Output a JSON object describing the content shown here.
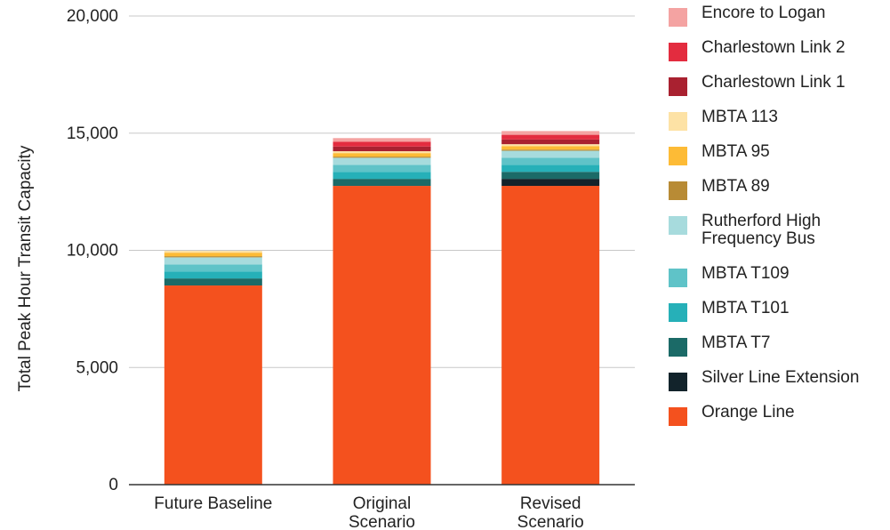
{
  "chart_data": {
    "type": "bar",
    "stacked": true,
    "title": "",
    "xlabel": "",
    "ylabel": "Total Peak Hour Transit Capacity",
    "ylim": [
      0,
      20000
    ],
    "yticks": [
      {
        "value": 0,
        "label": "0"
      },
      {
        "value": 5000,
        "label": "5,000"
      },
      {
        "value": 10000,
        "label": "10,000"
      },
      {
        "value": 15000,
        "label": "15,000"
      },
      {
        "value": 20000,
        "label": "20,000"
      }
    ],
    "grid": true,
    "legend_position": "right",
    "categories": [
      {
        "line1": "Future Baseline",
        "line2": ""
      },
      {
        "line1": "Original",
        "line2": "Scenario"
      },
      {
        "line1": "Revised",
        "line2": "Scenario"
      }
    ],
    "series": [
      {
        "name": "Orange Line",
        "color": "#f4511e",
        "values": [
          8500,
          12750,
          12750
        ]
      },
      {
        "name": "Silver Line Extension",
        "color": "#12232b",
        "values": [
          0,
          0,
          300
        ]
      },
      {
        "name": "MBTA T7",
        "color": "#1b6a67",
        "values": [
          300,
          300,
          300
        ]
      },
      {
        "name": "MBTA T101",
        "color": "#26b0b8",
        "values": [
          300,
          300,
          300
        ]
      },
      {
        "name": "MBTA T109",
        "color": "#5fc3c8",
        "values": [
          300,
          300,
          300
        ]
      },
      {
        "name": "Rutherford High Frequency Bus",
        "color": "#a7dbdd",
        "values": [
          300,
          300,
          300
        ]
      },
      {
        "name": "MBTA 89",
        "color": "#b88b35",
        "values": [
          50,
          50,
          50
        ]
      },
      {
        "name": "MBTA 95",
        "color": "#fdbb36",
        "values": [
          150,
          150,
          150
        ]
      },
      {
        "name": "MBTA 113",
        "color": "#fde2a5",
        "values": [
          80,
          80,
          80
        ]
      },
      {
        "name": "Charlestown Link 1",
        "color": "#a92130",
        "values": [
          0,
          200,
          200
        ]
      },
      {
        "name": "Charlestown Link 2",
        "color": "#e32c3f",
        "values": [
          0,
          200,
          200
        ]
      },
      {
        "name": "Encore to Logan",
        "color": "#f4a3a2",
        "values": [
          0,
          160,
          160
        ]
      }
    ],
    "legend_order": [
      "Encore to Logan",
      "Charlestown Link 2",
      "Charlestown Link 1",
      "MBTA 113",
      "MBTA 95",
      "MBTA 89",
      "Rutherford High Frequency Bus",
      "MBTA T109",
      "MBTA T101",
      "MBTA T7",
      "Silver Line Extension",
      "Orange Line"
    ]
  }
}
